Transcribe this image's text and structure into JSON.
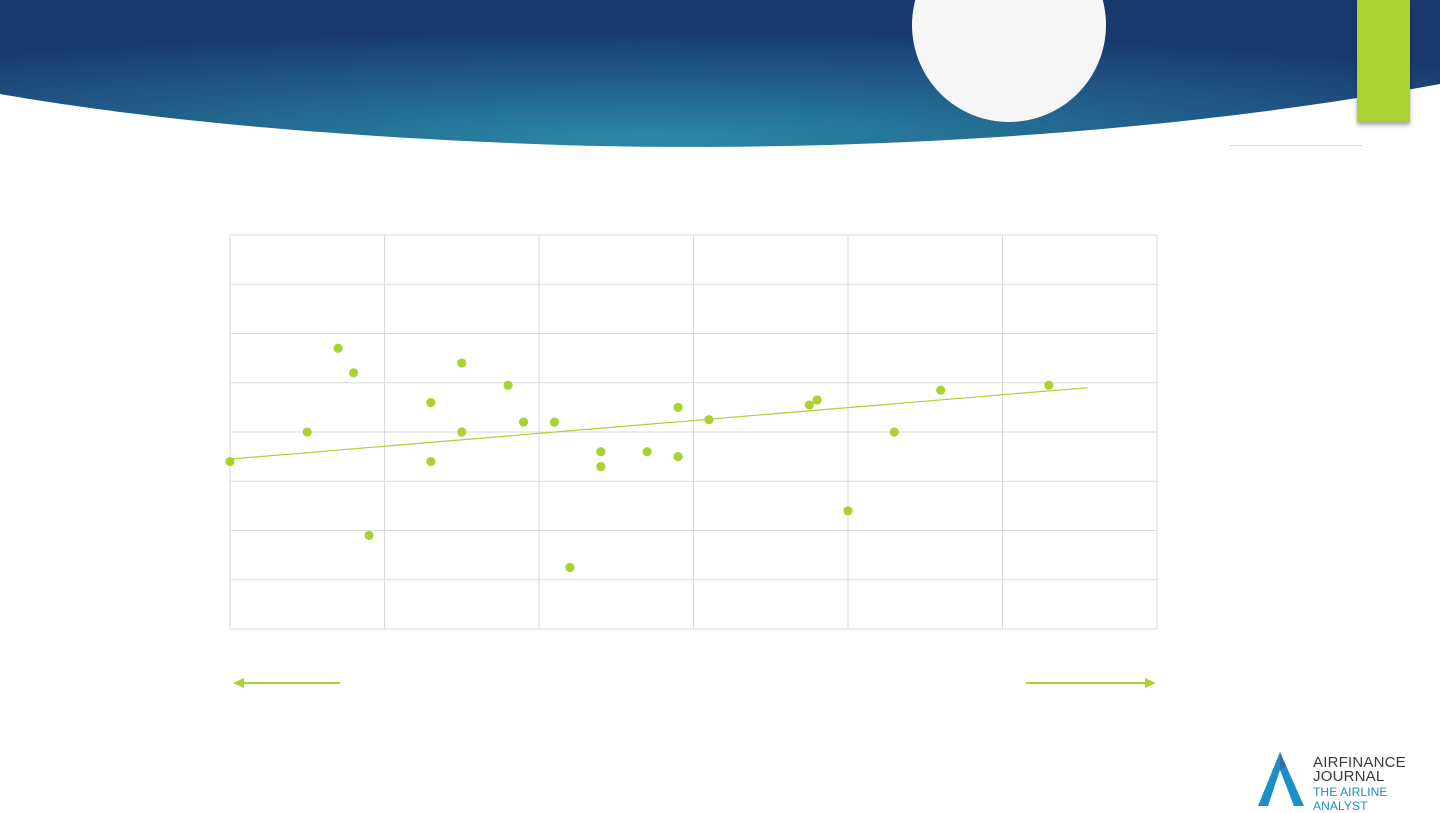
{
  "theme": {
    "header_dark": "#183a6e",
    "header_teal": "#2a8aa5",
    "accent": "#a9d232",
    "grid": "#d9d9d9",
    "logo_blue": "#1a8fc8"
  },
  "chart_data": {
    "type": "scatter",
    "title": "",
    "xlabel": "",
    "ylabel": "",
    "xlim": [
      0,
      6
    ],
    "ylim": [
      -1.6,
      6.4
    ],
    "grid": true,
    "x_gridlines": [
      1,
      2,
      3,
      4,
      5
    ],
    "y_gridlines": [
      -0.6,
      0.4,
      1.4,
      2.4,
      3.4,
      4.4,
      5.4
    ],
    "series": [
      {
        "color": "#a9d232",
        "points": [
          [
            0.0,
            1.8
          ],
          [
            0.5,
            2.4
          ],
          [
            0.7,
            4.1
          ],
          [
            0.8,
            3.6
          ],
          [
            0.9,
            0.3
          ],
          [
            1.3,
            3.0
          ],
          [
            1.3,
            1.8
          ],
          [
            1.5,
            3.8
          ],
          [
            1.5,
            2.4
          ],
          [
            1.8,
            3.35
          ],
          [
            1.9,
            2.6
          ],
          [
            2.1,
            2.6
          ],
          [
            2.2,
            -0.35
          ],
          [
            2.4,
            2.0
          ],
          [
            2.4,
            1.7
          ],
          [
            2.7,
            2.0
          ],
          [
            2.9,
            2.9
          ],
          [
            2.9,
            1.9
          ],
          [
            3.1,
            2.65
          ],
          [
            3.75,
            2.95
          ],
          [
            3.8,
            3.05
          ],
          [
            4.0,
            0.8
          ],
          [
            4.3,
            2.4
          ],
          [
            4.6,
            3.25
          ],
          [
            5.3,
            3.35
          ]
        ]
      }
    ],
    "trendline": {
      "x": [
        0.0,
        5.55
      ],
      "y": [
        1.85,
        3.3
      ]
    }
  },
  "logo": {
    "line1": "AIRFINANCE",
    "line2": "JOURNAL",
    "line3": "THE AIRLINE ANALYST"
  }
}
